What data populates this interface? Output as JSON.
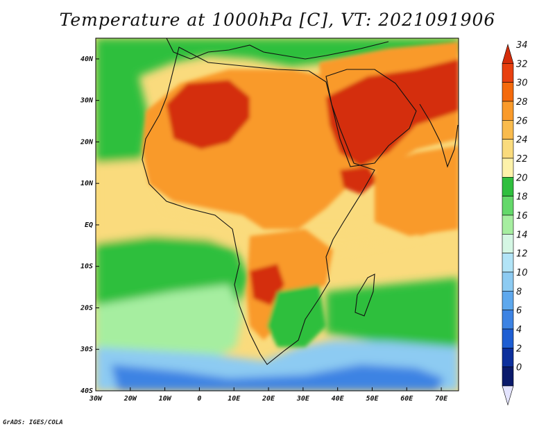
{
  "title": "Temperature at 1000hPa [C], VT: 2021091906",
  "credit": "GrADS: IGES/COLA",
  "map": {
    "lon_range": [
      -30,
      75
    ],
    "lat_range": [
      -40,
      45
    ],
    "lon_ticks": [
      "30W",
      "20W",
      "10W",
      "0",
      "10E",
      "20E",
      "30E",
      "40E",
      "50E",
      "60E",
      "70E"
    ],
    "lat_ticks": [
      "40N",
      "30N",
      "20N",
      "10N",
      "EQ",
      "10S",
      "20S",
      "30S",
      "40S"
    ]
  },
  "colorbar": {
    "levels": [
      "34",
      "32",
      "30",
      "28",
      "26",
      "24",
      "22",
      "20",
      "18",
      "16",
      "14",
      "12",
      "10",
      "8",
      "6",
      "4",
      "2",
      "0"
    ],
    "colors": [
      "#d42d0a",
      "#e8400f",
      "#f46a0c",
      "#f99a2a",
      "#f9bb4d",
      "#fadb7d",
      "#fdf2aa",
      "#2fbf3e",
      "#64d86a",
      "#a6eea0",
      "#d5f7e4",
      "#b2e4f7",
      "#8dcbf2",
      "#5ea8ed",
      "#3d83e3",
      "#1e5ed3",
      "#0c2f9c",
      "#0a1a6b"
    ],
    "under_color": "#e4e4ff"
  },
  "colors": {
    "hot": "#d42d0a",
    "warm": "#f99a2a",
    "mild": "#fadb7d",
    "green": "#2fbf3e",
    "light_green": "#a6eea0",
    "cool_blue": "#8dcbf2",
    "blue": "#3d83e3",
    "coast": "#111111"
  }
}
